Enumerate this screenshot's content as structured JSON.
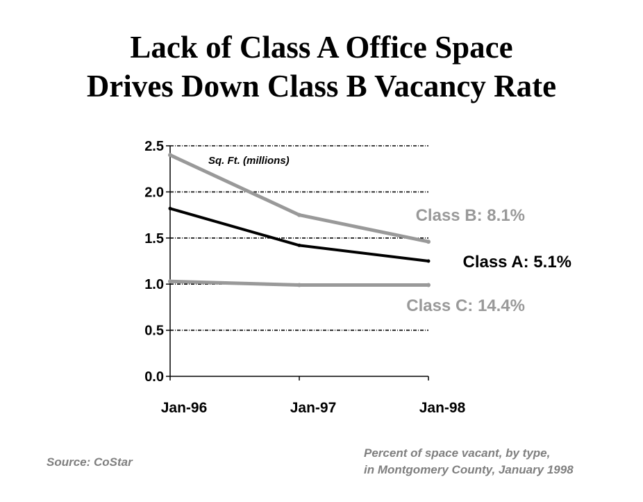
{
  "title_line1": "Lack of Class A Office Space",
  "title_line2": "Drives Down Class B Vacancy Rate",
  "source": "Source: CoStar",
  "note_line1": "Percent of space vacant, by type,",
  "note_line2": "in Montgomery County, January 1998",
  "chart_data": {
    "type": "line",
    "x": [
      "Jan-96",
      "Jan-97",
      "Jan-98"
    ],
    "ylabel": "Sq. Ft. (millions)",
    "ylim": [
      0,
      2.5
    ],
    "yticks": [
      "0.0",
      "0.5",
      "1.0",
      "1.5",
      "2.0",
      "2.5"
    ],
    "grid": true,
    "series": [
      {
        "name": "Class B: 8.1%",
        "values": [
          2.4,
          1.75,
          1.46
        ],
        "color": "#999999"
      },
      {
        "name": "Class A: 5.1%",
        "values": [
          1.82,
          1.42,
          1.25
        ],
        "color": "#000000"
      },
      {
        "name": "Class C: 14.4%",
        "values": [
          1.03,
          0.99,
          0.99
        ],
        "color": "#999999"
      }
    ]
  }
}
